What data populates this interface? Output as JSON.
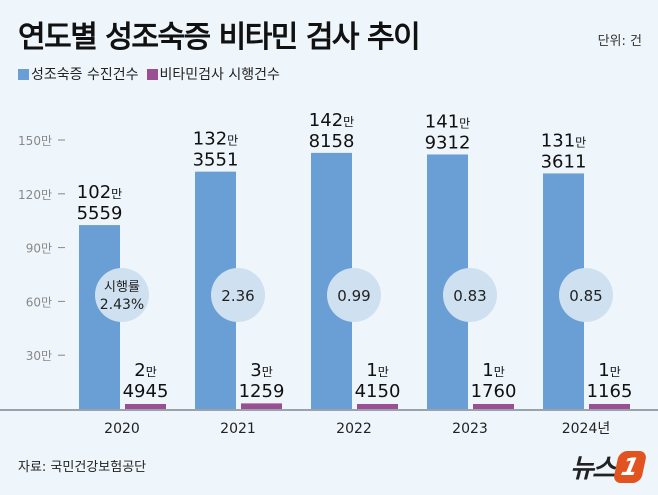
{
  "title": "연도별 성조숙증 비타민 검사 추이",
  "unit_label": "단위: 건",
  "source": "자료: 국민건강보험공단",
  "logo": {
    "text": "뉴스",
    "mark": "1"
  },
  "chart_data": {
    "type": "bar",
    "title": "연도별 성조숙증 비타민 검사 추이",
    "categories": [
      "2020",
      "2021",
      "2022",
      "2023",
      "2024년"
    ],
    "series": [
      {
        "name": "성조숙증 수진건수",
        "color": "#6a9fd6",
        "values": [
          1025559,
          1323551,
          1428158,
          1419312,
          1313611
        ],
        "labels_top": [
          "102만",
          "132만",
          "142만",
          "141만",
          "131만"
        ],
        "labels_bottom": [
          "5559",
          "3551",
          "8158",
          "9312",
          "3611"
        ]
      },
      {
        "name": "비타민검사 시행건수",
        "color": "#9a4f92",
        "values": [
          24945,
          31259,
          14150,
          11760,
          11165
        ],
        "labels_top": [
          "2만",
          "3만",
          "1만",
          "1만",
          "1만"
        ],
        "labels_bottom": [
          "4945",
          "1259",
          "4150",
          "1760",
          "1165"
        ]
      }
    ],
    "rate": {
      "label": "시행률",
      "values": [
        "2.43%",
        "2.36",
        "0.99",
        "0.83",
        "0.85"
      ]
    },
    "y_ticks": [
      {
        "value": 300000,
        "label": "30만"
      },
      {
        "value": 600000,
        "label": "60만"
      },
      {
        "value": 900000,
        "label": "90만"
      },
      {
        "value": 1200000,
        "label": "120만"
      },
      {
        "value": 1500000,
        "label": "150만"
      }
    ],
    "ylim": [
      0,
      1500000
    ],
    "legend": "top-left",
    "grid": false
  }
}
